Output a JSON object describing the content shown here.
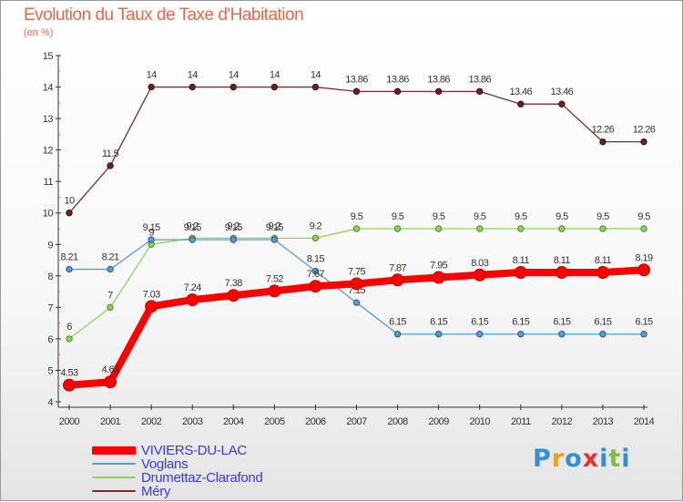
{
  "title": "Evolution du Taux de Taxe d'Habitation",
  "unit_label": "(en %)",
  "brand": {
    "text": "Proxiti",
    "colors": [
      "#2f8fd8",
      "#e8a020",
      "#2f8fd8",
      "#e83030",
      "#2f8fd8",
      "#7bbf3a",
      "#2f8fd8"
    ]
  },
  "chart_data": {
    "type": "line",
    "title": "Evolution du Taux de Taxe d'Habitation",
    "ylabel": "(en %)",
    "xlabel": "",
    "ylim": [
      4,
      15
    ],
    "yticks": [
      4,
      5,
      6,
      7,
      8,
      9,
      10,
      11,
      12,
      13,
      14,
      15
    ],
    "x": [
      "2000",
      "2001",
      "2002",
      "2003",
      "2004",
      "2005",
      "2006",
      "2007",
      "2008",
      "2009",
      "2010",
      "2011",
      "2012",
      "2013",
      "2014"
    ],
    "legend_position": "bottom-left",
    "grid": false,
    "series": [
      {
        "name": "Méry",
        "color": "#7a2e2e",
        "values": [
          10,
          11.5,
          14,
          14,
          14,
          14,
          14,
          13.86,
          13.86,
          13.86,
          13.86,
          13.46,
          13.46,
          12.26,
          12.26
        ],
        "labels": [
          "10",
          "11.5",
          "14",
          "14",
          "14",
          "14",
          "14",
          "13.86",
          "13.86",
          "13.86",
          "13.86",
          "13.46",
          "13.46",
          "12.26",
          "12.26"
        ]
      },
      {
        "name": "Drumettaz-Clarafond",
        "color": "#8ed25a",
        "values": [
          6,
          7,
          9,
          9.2,
          9.2,
          9.2,
          9.2,
          9.5,
          9.5,
          9.5,
          9.5,
          9.5,
          9.5,
          9.5,
          9.5
        ],
        "labels": [
          "6",
          "7",
          "9",
          "9.2",
          "9.2",
          "9.2",
          "9.2",
          "9.5",
          "9.5",
          "9.5",
          "9.5",
          "9.5",
          "9.5",
          "9.5",
          "9.5"
        ]
      },
      {
        "name": "Voglans",
        "color": "#5a9ad2",
        "values": [
          8.21,
          8.21,
          9.15,
          9.15,
          9.15,
          9.15,
          8.15,
          7.15,
          6.15,
          6.15,
          6.15,
          6.15,
          6.15,
          6.15,
          6.15
        ],
        "labels": [
          "8.21",
          "8.21",
          "9.15",
          "9.15",
          "9.15",
          "9.15",
          "8.15",
          "7.15",
          "6.15",
          "6.15",
          "6.15",
          "6.15",
          "6.15",
          "6.15",
          "6.15"
        ]
      },
      {
        "name": "VIVIERS-DU-LAC",
        "color": "#ff0000",
        "values": [
          4.53,
          4.63,
          7.03,
          7.24,
          7.38,
          7.52,
          7.67,
          7.75,
          7.87,
          7.95,
          8.03,
          8.11,
          8.11,
          8.11,
          8.19
        ],
        "labels": [
          "4.53",
          "4.63",
          "7.03",
          "7.24",
          "7.38",
          "7.52",
          "7.67",
          "7.75",
          "7.87",
          "7.95",
          "8.03",
          "8.11",
          "8.11",
          "8.11",
          "8.19"
        ]
      }
    ],
    "legend_order": [
      "VIVIERS-DU-LAC",
      "Voglans",
      "Drumettaz-Clarafond",
      "Méry"
    ]
  }
}
